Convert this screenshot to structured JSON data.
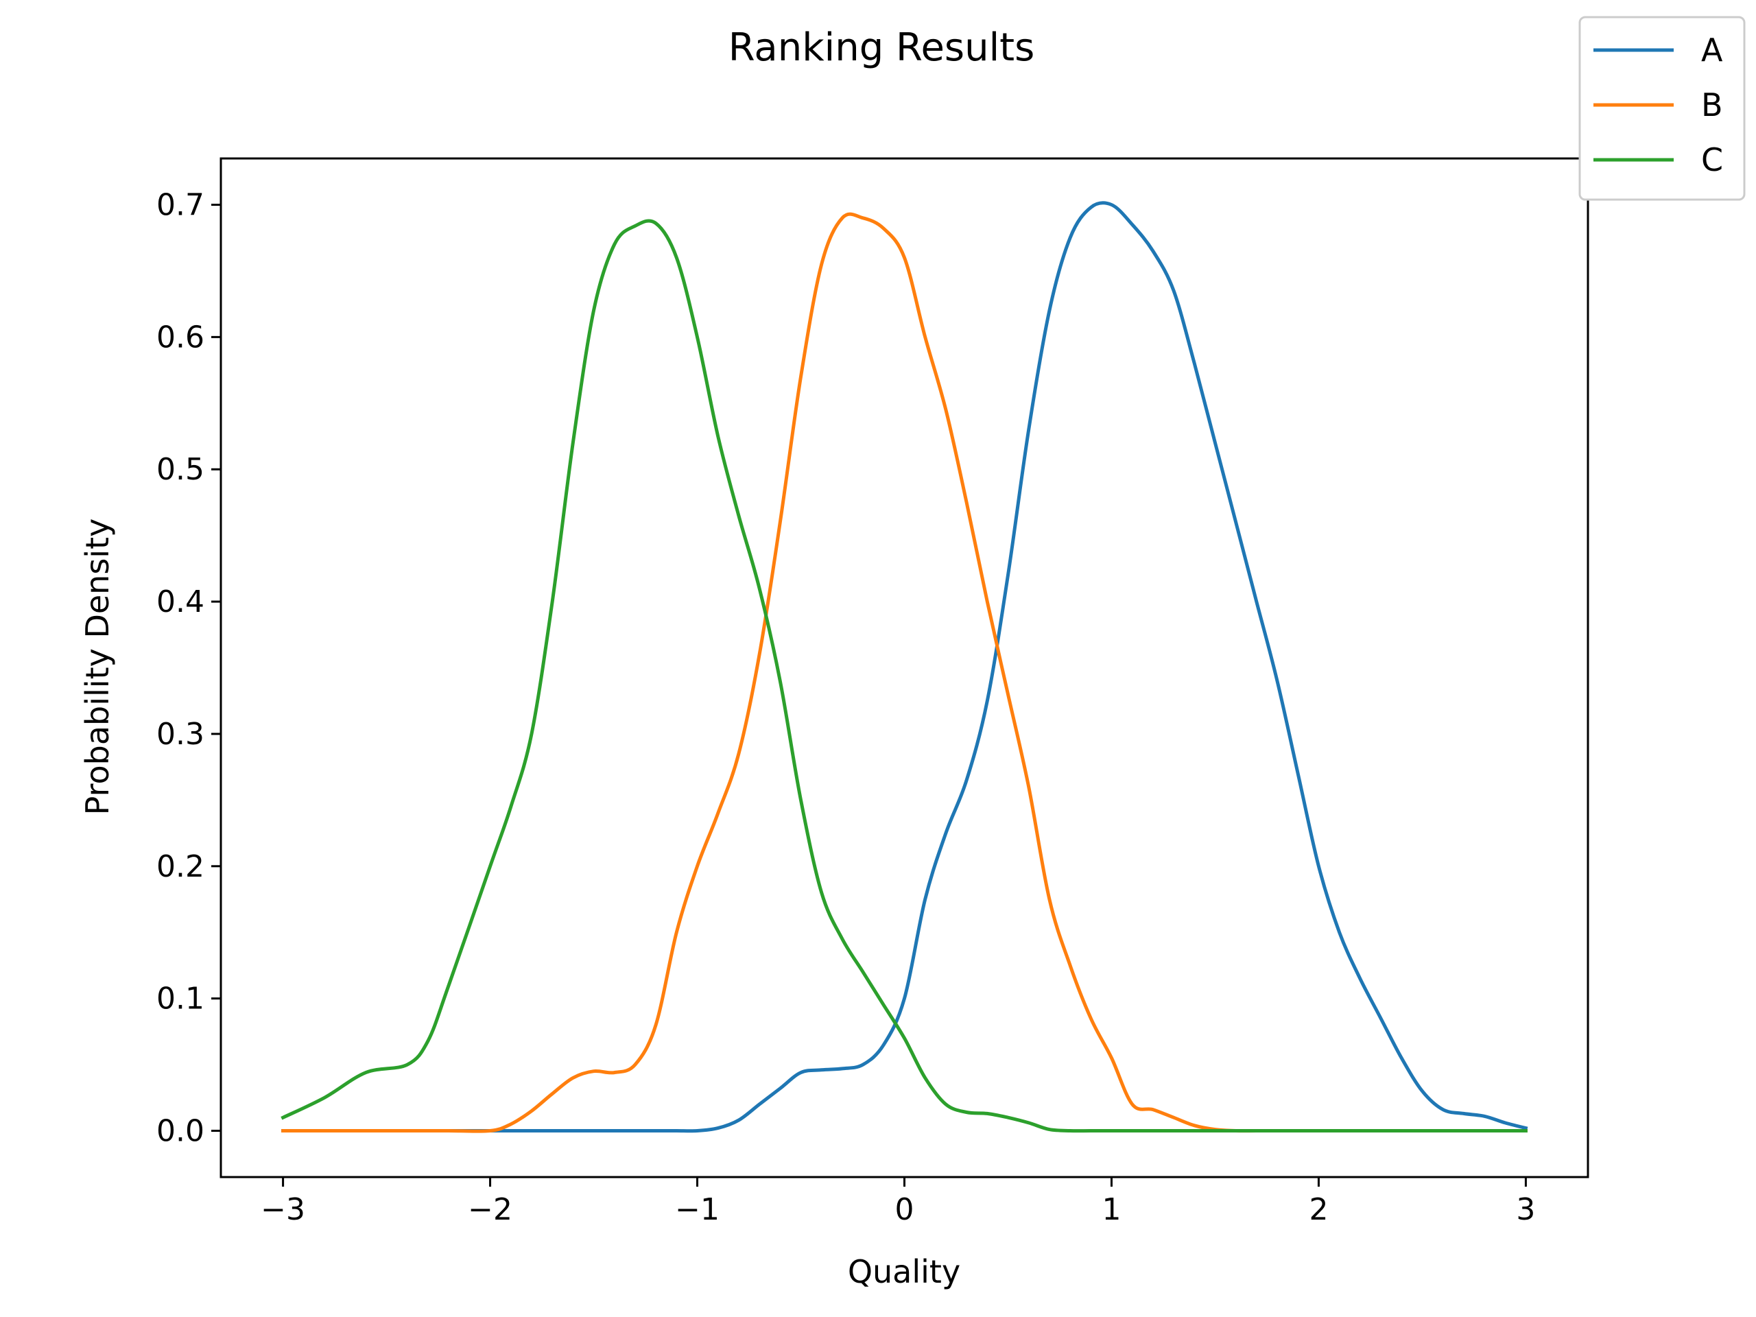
{
  "chart_data": {
    "type": "line",
    "title": "Ranking Results",
    "xlabel": "Quality",
    "ylabel": "Probability Density",
    "xlim": [
      -3.3,
      3.3
    ],
    "ylim": [
      -0.035,
      0.735
    ],
    "xticks": [
      -3,
      -2,
      -1,
      0,
      1,
      2,
      3
    ],
    "xtick_labels": [
      "−3",
      "−2",
      "−1",
      "0",
      "1",
      "2",
      "3"
    ],
    "yticks": [
      0.0,
      0.1,
      0.2,
      0.3,
      0.4,
      0.5,
      0.6,
      0.7
    ],
    "ytick_labels": [
      "0.0",
      "0.1",
      "0.2",
      "0.3",
      "0.4",
      "0.5",
      "0.6",
      "0.7"
    ],
    "grid": false,
    "legend_position": "top-right",
    "x": [
      -3.0,
      -2.8,
      -2.6,
      -2.4,
      -2.3,
      -2.2,
      -2.0,
      -1.9,
      -1.8,
      -1.7,
      -1.6,
      -1.5,
      -1.4,
      -1.3,
      -1.2,
      -1.1,
      -1.0,
      -0.9,
      -0.8,
      -0.7,
      -0.6,
      -0.5,
      -0.4,
      -0.3,
      -0.2,
      -0.1,
      0.0,
      0.1,
      0.2,
      0.3,
      0.4,
      0.5,
      0.6,
      0.7,
      0.8,
      0.9,
      1.0,
      1.1,
      1.2,
      1.3,
      1.4,
      1.5,
      1.6,
      1.7,
      1.8,
      1.9,
      2.0,
      2.1,
      2.2,
      2.3,
      2.4,
      2.5,
      2.6,
      2.7,
      2.8,
      2.9,
      3.0
    ],
    "series": [
      {
        "name": "A",
        "color": "#1f77b4",
        "values": [
          0.0,
          0.0,
          0.0,
          0.0,
          0.0,
          0.0,
          0.0,
          0.0,
          0.0,
          0.0,
          0.0,
          0.0,
          0.0,
          0.0,
          0.0,
          0.0,
          0.0,
          0.002,
          0.008,
          0.02,
          0.032,
          0.044,
          0.046,
          0.047,
          0.05,
          0.065,
          0.1,
          0.175,
          0.225,
          0.265,
          0.325,
          0.42,
          0.53,
          0.62,
          0.675,
          0.698,
          0.7,
          0.685,
          0.665,
          0.635,
          0.58,
          0.52,
          0.46,
          0.4,
          0.34,
          0.27,
          0.2,
          0.15,
          0.115,
          0.085,
          0.055,
          0.03,
          0.016,
          0.013,
          0.011,
          0.006,
          0.002
        ]
      },
      {
        "name": "B",
        "color": "#ff7f0e",
        "values": [
          0.0,
          0.0,
          0.0,
          0.0,
          0.0,
          0.0,
          0.0,
          0.005,
          0.015,
          0.028,
          0.04,
          0.045,
          0.044,
          0.05,
          0.08,
          0.15,
          0.2,
          0.24,
          0.285,
          0.36,
          0.46,
          0.57,
          0.655,
          0.69,
          0.69,
          0.682,
          0.66,
          0.6,
          0.545,
          0.475,
          0.4,
          0.33,
          0.26,
          0.175,
          0.125,
          0.085,
          0.055,
          0.02,
          0.016,
          0.01,
          0.004,
          0.001,
          0.0,
          0.0,
          0.0,
          0.0,
          0.0,
          0.0,
          0.0,
          0.0,
          0.0,
          0.0,
          0.0,
          0.0,
          0.0,
          0.0,
          0.0
        ]
      },
      {
        "name": "C",
        "color": "#2ca02c",
        "values": [
          0.01,
          0.025,
          0.044,
          0.05,
          0.068,
          0.11,
          0.2,
          0.245,
          0.3,
          0.4,
          0.52,
          0.62,
          0.67,
          0.684,
          0.686,
          0.66,
          0.6,
          0.525,
          0.465,
          0.41,
          0.34,
          0.25,
          0.18,
          0.145,
          0.12,
          0.095,
          0.07,
          0.04,
          0.02,
          0.014,
          0.013,
          0.01,
          0.006,
          0.001,
          0.0,
          0.0,
          0.0,
          0.0,
          0.0,
          0.0,
          0.0,
          0.0,
          0.0,
          0.0,
          0.0,
          0.0,
          0.0,
          0.0,
          0.0,
          0.0,
          0.0,
          0.0,
          0.0,
          0.0,
          0.0,
          0.0,
          0.0
        ]
      }
    ]
  }
}
